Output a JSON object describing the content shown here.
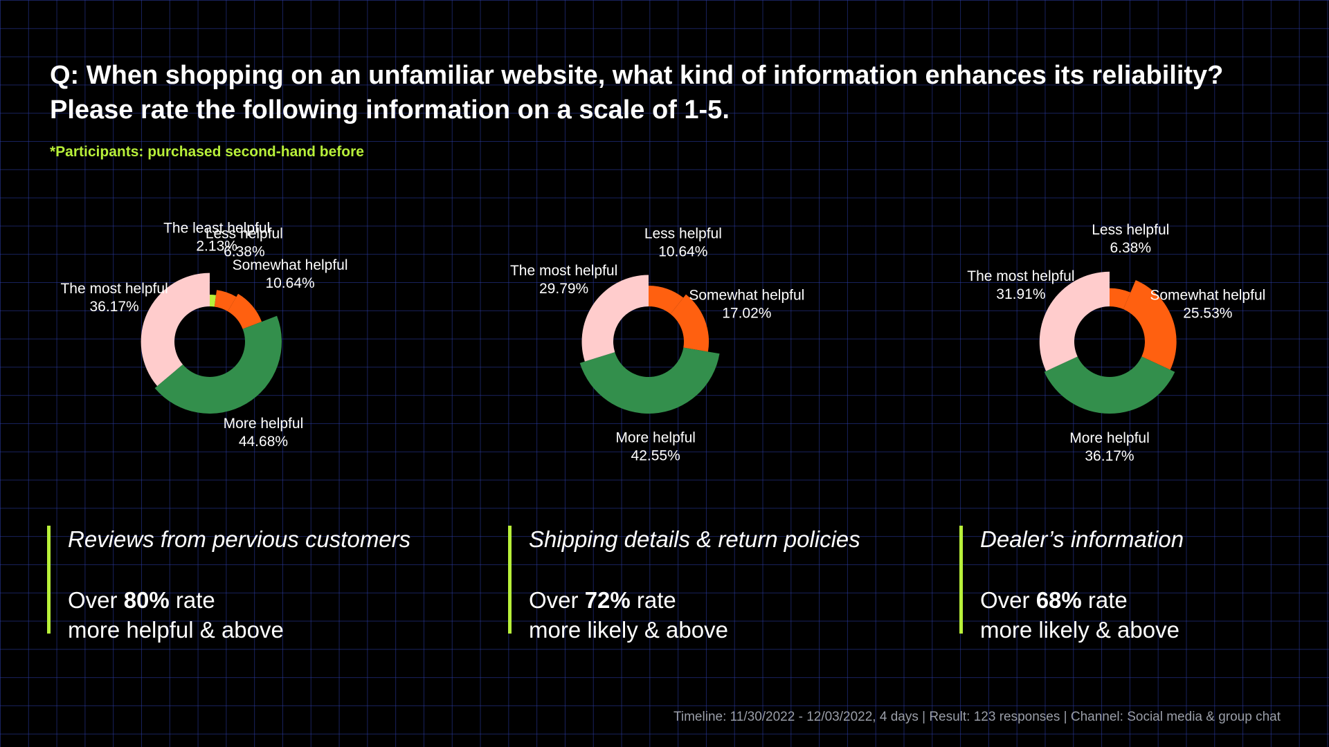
{
  "title": "Q: When shopping on an unfamiliar website, what kind of information enhances its reliability? Please rate the following information on a scale of 1-5.",
  "subtitle": "*Participants: purchased second-hand before",
  "colors": {
    "The least helpful": "#b8f03a",
    "Less helpful": "#ff6010",
    "Somewhat helpful": "#ff6010",
    "More helpful": "#338f4c",
    "The most helpful": "#ffcccc"
  },
  "chart_data": [
    {
      "type": "pie",
      "style": "donut",
      "title": "Reviews from pervious customers",
      "slices": [
        {
          "label": "The least helpful",
          "value": 2.13,
          "display": "2.13%"
        },
        {
          "label": "Less helpful",
          "value": 6.38,
          "display": "6.38%"
        },
        {
          "label": "Somewhat helpful",
          "value": 10.64,
          "display": "10.64%"
        },
        {
          "label": "More helpful",
          "value": 44.68,
          "display": "44.68%"
        },
        {
          "label": "The most helpful",
          "value": 36.17,
          "display": "36.17%"
        }
      ]
    },
    {
      "type": "pie",
      "style": "donut",
      "title": "Shipping details & return policies",
      "slices": [
        {
          "label": "Less helpful",
          "value": 10.64,
          "display": "10.64%"
        },
        {
          "label": "Somewhat helpful",
          "value": 17.02,
          "display": "17.02%"
        },
        {
          "label": "More helpful",
          "value": 42.55,
          "display": "42.55%"
        },
        {
          "label": "The most helpful",
          "value": 29.79,
          "display": "29.79%"
        }
      ]
    },
    {
      "type": "pie",
      "style": "donut",
      "title": "Dealer’s information",
      "slices": [
        {
          "label": "Less helpful",
          "value": 6.38,
          "display": "6.38%"
        },
        {
          "label": "Somewhat helpful",
          "value": 25.53,
          "display": "25.53%"
        },
        {
          "label": "More helpful",
          "value": 36.17,
          "display": "36.17%"
        },
        {
          "label": "The most helpful",
          "value": 31.91,
          "display": "31.91%"
        }
      ]
    }
  ],
  "summaries": [
    {
      "title": "Reviews from pervious customers",
      "prefix": "Over",
      "percent": "80%",
      "suffix": "rate",
      "line2": "more helpful & above"
    },
    {
      "title": "Shipping details & return policies",
      "prefix": "Over",
      "percent": "72%",
      "suffix": "rate",
      "line2": "more likely & above"
    },
    {
      "title": "Dealer’s information",
      "prefix": "Over",
      "percent": "68%",
      "suffix": "rate",
      "line2": "more likely & above"
    }
  ],
  "footer": "Timeline: 11/30/2022 - 12/03/2022, 4 days | Result: 123 responses | Channel: Social media & group chat"
}
